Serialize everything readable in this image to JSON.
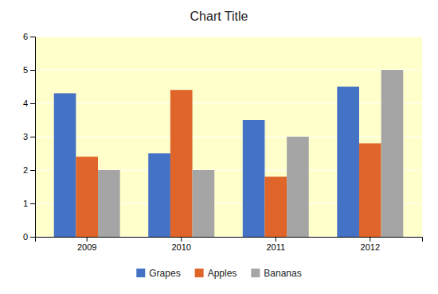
{
  "chart_data": {
    "type": "bar",
    "title": "Chart Title",
    "categories": [
      "2009",
      "2010",
      "2011",
      "2012"
    ],
    "series": [
      {
        "name": "Grapes",
        "color": "#4472C4",
        "values": [
          4.3,
          2.5,
          3.5,
          4.5
        ]
      },
      {
        "name": "Apples",
        "color": "#E0652A",
        "values": [
          2.4,
          4.4,
          1.8,
          2.8
        ]
      },
      {
        "name": "Bananas",
        "color": "#A5A5A5",
        "values": [
          2.0,
          2.0,
          3.0,
          5.0
        ]
      }
    ],
    "ylim": [
      0,
      6
    ],
    "yticks": [
      0,
      1,
      2,
      3,
      4,
      5,
      6
    ],
    "grid": true,
    "legend": "bottom"
  }
}
